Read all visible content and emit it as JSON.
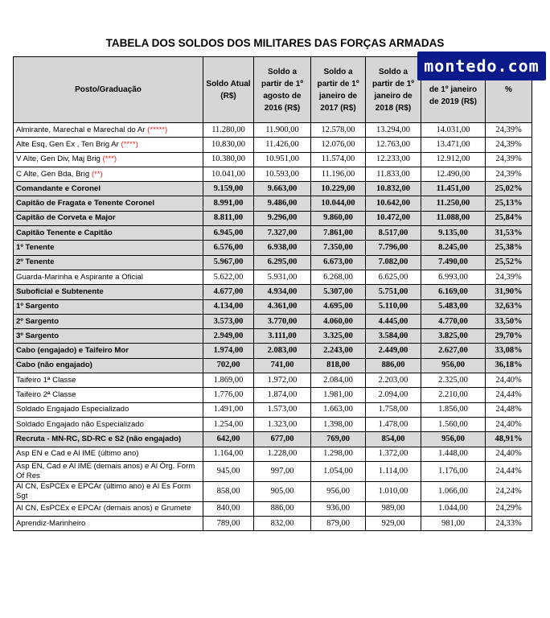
{
  "title": "TABELA DOS SOLDOS DOS MILITARES DAS FORÇAS ARMADAS",
  "logo_text": "montedo.com",
  "colors": {
    "header_bg": "#d6d6d6",
    "highlight_bg": "#d9d9d9",
    "stars": "#e02020",
    "logo_bg": "#0a1a8a"
  },
  "columns": [
    "Posto/Graduação",
    "Soldo Atual (R$)",
    "Soldo a partir de 1º agosto de 2016 (R$)",
    "Soldo a partir de 1º janeiro de 2017 (R$)",
    "Soldo a partir de 1º janeiro de 2018 (R$)",
    "Soldo a partir de 1º janeiro de 2019 (R$)",
    "%"
  ],
  "rows": [
    {
      "posto": "Almirante, Marechal e Marechal do Ar",
      "stars": "(*****)",
      "atual": "11.280,00",
      "ago2016": "11.900,00",
      "jan2017": "12.578,00",
      "jan2018": "13.294,00",
      "jan2019": "14.031,00",
      "pct": "24,39%"
    },
    {
      "posto": "Alte Esq, Gen Ex , Ten Brig Ar",
      "stars": "(****)",
      "atual": "10.830,00",
      "ago2016": "11.426,00",
      "jan2017": "12.076,00",
      "jan2018": "12.763,00",
      "jan2019": "13.471,00",
      "pct": "24,39%"
    },
    {
      "posto": "V Alte, Gen Div, Maj Brig",
      "stars": "(***)",
      "atual": "10.380,00",
      "ago2016": "10.951,00",
      "jan2017": "11.574,00",
      "jan2018": "12.233,00",
      "jan2019": "12.912,00",
      "pct": "24,39%"
    },
    {
      "posto": "C Alte, Gen Bda, Brig",
      "stars": "(**)",
      "atual": "10.041,00",
      "ago2016": "10.593,00",
      "jan2017": "11.196,00",
      "jan2018": "11.833,00",
      "jan2019": "12.490,00",
      "pct": "24,39%"
    },
    {
      "posto": "Comandante e Coronel",
      "stars": "",
      "atual": "9.159,00",
      "ago2016": "9.663,00",
      "jan2017": "10.229,00",
      "jan2018": "10.832,00",
      "jan2019": "11.451,00",
      "pct": "25,02%",
      "hl": true
    },
    {
      "posto": "Capitão de Fragata e Tenente Coronel",
      "stars": "",
      "atual": "8.991,00",
      "ago2016": "9.486,00",
      "jan2017": "10.044,00",
      "jan2018": "10.642,00",
      "jan2019": "11.250,00",
      "pct": "25,13%",
      "hl": true
    },
    {
      "posto": "Capitão de Corveta e Major",
      "stars": "",
      "atual": "8.811,00",
      "ago2016": "9.296,00",
      "jan2017": "9.860,00",
      "jan2018": "10.472,00",
      "jan2019": "11.088,00",
      "pct": "25,84%",
      "hl": true
    },
    {
      "posto": "Capitão Tenente e Capitão",
      "stars": "",
      "atual": "6.945,00",
      "ago2016": "7.327,00",
      "jan2017": "7.861,00",
      "jan2018": "8.517,00",
      "jan2019": "9.135,00",
      "pct": "31,53%",
      "hl": true
    },
    {
      "posto": "1º Tenente",
      "stars": "",
      "atual": "6.576,00",
      "ago2016": "6.938,00",
      "jan2017": "7.350,00",
      "jan2018": "7.796,00",
      "jan2019": "8.245,00",
      "pct": "25,38%",
      "hl": true
    },
    {
      "posto": "2º Tenente",
      "stars": "",
      "atual": "5.967,00",
      "ago2016": "6.295,00",
      "jan2017": "6.673,00",
      "jan2018": "7.082,00",
      "jan2019": "7.490,00",
      "pct": "25,52%",
      "hl": true
    },
    {
      "posto": "Guarda-Marinha e Aspirante a Oficial",
      "stars": "",
      "atual": "5.622,00",
      "ago2016": "5.931,00",
      "jan2017": "6.268,00",
      "jan2018": "6.625,00",
      "jan2019": "6.993,00",
      "pct": "24,39%"
    },
    {
      "posto": "Suboficial e Subtenente",
      "stars": "",
      "atual": "4.677,00",
      "ago2016": "4.934,00",
      "jan2017": "5.307,00",
      "jan2018": "5.751,00",
      "jan2019": "6.169,00",
      "pct": "31,90%",
      "hl": true
    },
    {
      "posto": "1º Sargento",
      "stars": "",
      "atual": "4.134,00",
      "ago2016": "4.361,00",
      "jan2017": "4.695,00",
      "jan2018": "5.110,00",
      "jan2019": "5.483,00",
      "pct": "32,63%",
      "hl": true
    },
    {
      "posto": "2º Sargento",
      "stars": "",
      "atual": "3.573,00",
      "ago2016": "3.770,00",
      "jan2017": "4.060,00",
      "jan2018": "4.445,00",
      "jan2019": "4.770,00",
      "pct": "33,50%",
      "hl": true
    },
    {
      "posto": "3º Sargento",
      "stars": "",
      "atual": "2.949,00",
      "ago2016": "3.111,00",
      "jan2017": "3.325,00",
      "jan2018": "3.584,00",
      "jan2019": "3.825,00",
      "pct": "29,70%",
      "hl": true
    },
    {
      "posto": "Cabo (engajado) e Taifeiro Mor",
      "stars": "",
      "atual": "1.974,00",
      "ago2016": "2.083,00",
      "jan2017": "2.243,00",
      "jan2018": "2.449,00",
      "jan2019": "2.627,00",
      "pct": "33,08%",
      "hl": true
    },
    {
      "posto": "Cabo (não engajado)",
      "stars": "",
      "atual": "702,00",
      "ago2016": "741,00",
      "jan2017": "818,00",
      "jan2018": "886,00",
      "jan2019": "956,00",
      "pct": "36,18%",
      "hl": true
    },
    {
      "posto": "Taifeiro 1ª Classe",
      "stars": "",
      "atual": "1.869,00",
      "ago2016": "1.972,00",
      "jan2017": "2.084,00",
      "jan2018": "2.203,00",
      "jan2019": "2.325,00",
      "pct": "24,40%"
    },
    {
      "posto": "Taifeiro 2ª Classe",
      "stars": "",
      "atual": "1.776,00",
      "ago2016": "1.874,00",
      "jan2017": "1.981,00",
      "jan2018": "2.094,00",
      "jan2019": "2.210,00",
      "pct": "24,44%"
    },
    {
      "posto": "Soldado Engajado Especializado",
      "stars": "",
      "atual": "1.491,00",
      "ago2016": "1.573,00",
      "jan2017": "1.663,00",
      "jan2018": "1.758,00",
      "jan2019": "1.856,00",
      "pct": "24,48%"
    },
    {
      "posto": "Soldado Engajado não Especializado",
      "stars": "",
      "atual": "1.254,00",
      "ago2016": "1.323,00",
      "jan2017": "1.398,00",
      "jan2018": "1.478,00",
      "jan2019": "1.560,00",
      "pct": "24,40%"
    },
    {
      "posto": "Recruta - MN-RC, SD-RC e S2 (não engajado)",
      "stars": "",
      "atual": "642,00",
      "ago2016": "677,00",
      "jan2017": "769,00",
      "jan2018": "854,00",
      "jan2019": "956,00",
      "pct": "48,91%",
      "hl": true
    },
    {
      "posto": "Asp EN e Cad e Al IME (último ano)",
      "stars": "",
      "atual": "1.164,00",
      "ago2016": "1.228,00",
      "jan2017": "1.298,00",
      "jan2018": "1.372,00",
      "jan2019": "1.448,00",
      "pct": "24,40%"
    },
    {
      "posto": "Asp EN, Cad e Al IME (demais anos) e Al Órg. Form Of Res",
      "stars": "",
      "atual": "945,00",
      "ago2016": "997,00",
      "jan2017": "1.054,00",
      "jan2018": "1.114,00",
      "jan2019": "1.176,00",
      "pct": "24,44%",
      "size": "tall"
    },
    {
      "posto": "Al CN, EsPCEx e EPCAr (último ano) e Al Es Form Sgt",
      "stars": "",
      "atual": "858,00",
      "ago2016": "905,00",
      "jan2017": "956,00",
      "jan2018": "1.010,00",
      "jan2019": "1.066,00",
      "pct": "24,24%",
      "size": "taller"
    },
    {
      "posto": "Al CN, EsPCEx e EPCAr (demais anos) e Grumete",
      "stars": "",
      "atual": "840,00",
      "ago2016": "886,00",
      "jan2017": "936,00",
      "jan2018": "989,00",
      "jan2019": "1.044,00",
      "pct": "24,29%",
      "size": "taller"
    },
    {
      "posto": "Aprendiz-Marinheiro",
      "stars": "",
      "atual": "789,00",
      "ago2016": "832,00",
      "jan2017": "879,00",
      "jan2018": "929,00",
      "jan2019": "981,00",
      "pct": "24,33%"
    }
  ]
}
